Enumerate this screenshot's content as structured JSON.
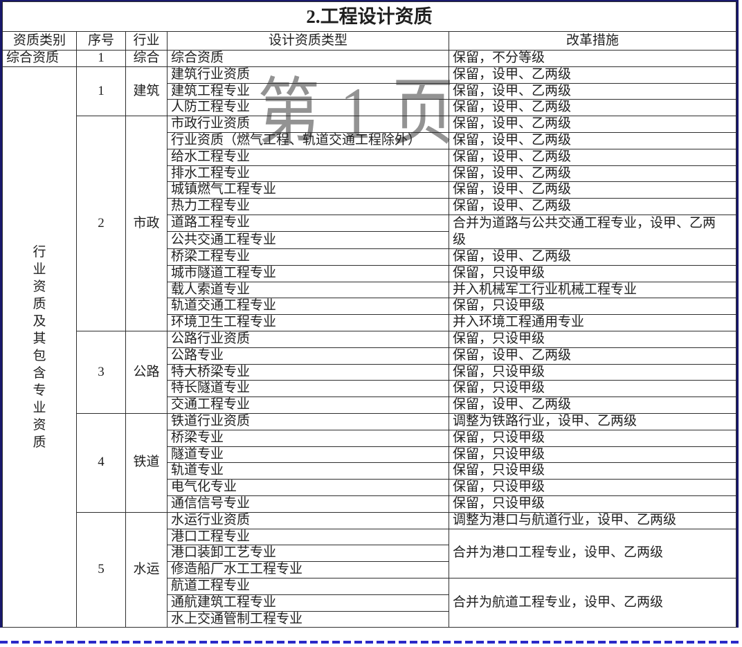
{
  "title": "2.工程设计资质",
  "watermark": {
    "text": "第 1 页"
  },
  "colors": {
    "frame_border": "#18186c",
    "page_break_dashed": "#2a2ac8",
    "grid_line": "#2d2d2d",
    "text": "#1f1f1f",
    "watermark_gray": "#8a8a8a",
    "background": "#ffffff"
  },
  "columns": [
    "资质类别",
    "序号",
    "行业",
    "设计资质类型",
    "改革措施"
  ],
  "comprehensive": {
    "category": "综合资质",
    "seq": "1",
    "industry": "综合",
    "type": "综合资质",
    "measure": "保留，不分等级"
  },
  "industry_category_label": "行业资质及其包含专业资质",
  "sections": [
    {
      "seq": "1",
      "industry": "建筑",
      "rows": [
        {
          "type": "建筑行业资质",
          "measure": "保留，设甲、乙两级"
        },
        {
          "type": "建筑工程专业",
          "measure": "保留，设甲、乙两级"
        },
        {
          "type": "人防工程专业",
          "measure": "保留，设甲、乙两级"
        }
      ]
    },
    {
      "seq": "2",
      "industry": "市政",
      "rows": [
        {
          "type": "市政行业资质",
          "measure": "保留，设甲、乙两级"
        },
        {
          "type": "行业资质（燃气工程、轨道交通工程除外）",
          "measure": "保留，设甲、乙两级"
        },
        {
          "type": "给水工程专业",
          "measure": "保留，设甲、乙两级"
        },
        {
          "type": "排水工程专业",
          "measure": "保留，设甲、乙两级"
        },
        {
          "type": "城镇燃气工程专业",
          "measure": "保留，设甲、乙两级"
        },
        {
          "type": "热力工程专业",
          "measure": "保留，设甲、乙两级"
        },
        {
          "type": "道路工程专业",
          "measure": "合并为道路与公共交通工程专业，设甲、乙两\n级",
          "measure_rowspan": 2
        },
        {
          "type": "公共交通工程专业"
        },
        {
          "type": "桥梁工程专业",
          "measure": "保留，设甲、乙两级"
        },
        {
          "type": "城市隧道工程专业",
          "measure": "保留，只设甲级"
        },
        {
          "type": "载人索道专业",
          "measure": "并入机械军工行业机械工程专业"
        },
        {
          "type": "轨道交通工程专业",
          "measure": "保留，只设甲级"
        },
        {
          "type": "环境卫生工程专业",
          "measure": "并入环境工程通用专业"
        }
      ]
    },
    {
      "seq": "3",
      "industry": "公路",
      "rows": [
        {
          "type": "公路行业资质",
          "measure": "保留，只设甲级"
        },
        {
          "type": "公路专业",
          "measure": "保留，设甲、乙两级"
        },
        {
          "type": "特大桥梁专业",
          "measure": "保留，只设甲级"
        },
        {
          "type": "特长隧道专业",
          "measure": "保留，只设甲级"
        },
        {
          "type": "交通工程专业",
          "measure": "保留，设甲、乙两级"
        }
      ]
    },
    {
      "seq": "4",
      "industry": "铁道",
      "rows": [
        {
          "type": "铁道行业资质",
          "measure": "调整为铁路行业，设甲、乙两级"
        },
        {
          "type": "桥梁专业",
          "measure": "保留，只设甲级"
        },
        {
          "type": "隧道专业",
          "measure": "保留，只设甲级"
        },
        {
          "type": "轨道专业",
          "measure": "保留，只设甲级"
        },
        {
          "type": "电气化专业",
          "measure": "保留，只设甲级"
        },
        {
          "type": "通信信号专业",
          "measure": "保留，只设甲级"
        }
      ]
    },
    {
      "seq": "5",
      "industry": "水运",
      "rows": [
        {
          "type": "水运行业资质",
          "measure": "调整为港口与航道行业，设甲、乙两级"
        },
        {
          "type": "港口工程专业",
          "measure": "合并为港口工程专业，设甲、乙两级",
          "measure_rowspan": 3
        },
        {
          "type": "港口装卸工艺专业"
        },
        {
          "type": "修造船厂水工工程专业"
        },
        {
          "type": "航道工程专业",
          "measure": "合并为航道工程专业，设甲、乙两级",
          "measure_rowspan": 3
        },
        {
          "type": "通航建筑工程专业"
        },
        {
          "type": "水上交通管制工程专业"
        }
      ]
    }
  ]
}
